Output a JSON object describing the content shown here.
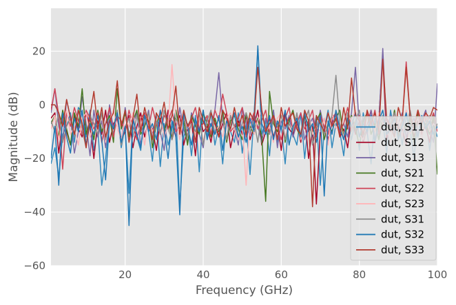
{
  "chart_data": {
    "type": "line",
    "title": "",
    "xlabel": "Frequency (GHz)",
    "ylabel": "Magnitude (dB)",
    "xlim": [
      1,
      100
    ],
    "ylim": [
      -60,
      36
    ],
    "xticks": [
      20,
      40,
      60,
      80,
      100
    ],
    "yticks": [
      -60,
      -40,
      -20,
      0,
      20
    ],
    "xtick_labels": [
      "20",
      "40",
      "60",
      "80",
      "100"
    ],
    "ytick_labels": [
      "−60",
      "−40",
      "−20",
      "0",
      "20"
    ],
    "grid": true,
    "legend_position": "lower-right",
    "x": [
      1,
      2,
      3,
      4,
      5,
      6,
      7,
      8,
      9,
      10,
      11,
      12,
      13,
      14,
      15,
      16,
      17,
      18,
      19,
      20,
      21,
      22,
      23,
      24,
      25,
      26,
      27,
      28,
      29,
      30,
      31,
      32,
      33,
      34,
      35,
      36,
      37,
      38,
      39,
      40,
      41,
      42,
      43,
      44,
      45,
      46,
      47,
      48,
      49,
      50,
      51,
      52,
      53,
      54,
      55,
      56,
      57,
      58,
      59,
      60,
      61,
      62,
      63,
      64,
      65,
      66,
      67,
      68,
      69,
      70,
      71,
      72,
      73,
      74,
      75,
      76,
      77,
      78,
      79,
      80,
      81,
      82,
      83,
      84,
      85,
      86,
      87,
      88,
      89,
      90,
      91,
      92,
      93,
      94,
      95,
      96,
      97,
      98,
      99,
      100
    ],
    "series": [
      {
        "name": "dut, S11",
        "color": "#348ABD",
        "values": [
          -22,
          -16,
          -27,
          -11,
          -8,
          -3,
          -14,
          -1,
          -3,
          -12,
          -2,
          -17,
          -9,
          -30,
          -20,
          -5,
          -11,
          -3,
          -16,
          -8,
          -33,
          -5,
          -12,
          -17,
          -3,
          -10,
          -21,
          -4,
          -23,
          -7,
          -15,
          -9,
          -2,
          -38,
          -12,
          -7,
          -19,
          -4,
          -25,
          -2,
          -12,
          -3,
          -15,
          -8,
          -22,
          -5,
          -10,
          -14,
          -3,
          -18,
          -7,
          -26,
          -4,
          21,
          -11,
          -6,
          -19,
          -2,
          -14,
          -8,
          -22,
          -5,
          -11,
          -15,
          -3,
          -20,
          -6,
          -12,
          -4,
          -30,
          -9,
          -2,
          -16,
          -7,
          -10,
          -19,
          -4,
          -13,
          -6,
          -17,
          -3,
          -10,
          -22,
          -5,
          -13,
          -6,
          -18,
          -2,
          -11,
          -7,
          -15,
          -4,
          -9,
          -20,
          -5,
          -13,
          -3,
          -17,
          -7,
          -12
        ]
      },
      {
        "name": "dut, S12",
        "color": "#A60628",
        "values": [
          -5,
          -3,
          -18,
          -6,
          -10,
          -15,
          -4,
          -9,
          -12,
          -3,
          -8,
          -20,
          -6,
          -11,
          -2,
          -14,
          -7,
          -5,
          -13,
          -10,
          -4,
          -16,
          -8,
          -3,
          -12,
          -6,
          -9,
          -17,
          -5,
          -11,
          -2,
          -13,
          -7,
          -4,
          -15,
          -9,
          -6,
          -19,
          -3,
          -10,
          -8,
          -14,
          -5,
          -12,
          -7,
          -3,
          -16,
          -9,
          -6,
          -11,
          -4,
          -13,
          -8,
          -2,
          -15,
          -10,
          -5,
          -12,
          -7,
          -17,
          -3,
          -9,
          -11,
          -6,
          -14,
          -4,
          -20,
          -8,
          -37,
          -10,
          -5,
          -13,
          -7,
          -3,
          -12,
          -9,
          -16,
          -4,
          -11,
          -6,
          -14,
          -8,
          -2,
          -10,
          -5,
          18,
          -13,
          -7,
          -3,
          -11,
          -9,
          -15,
          -4,
          -12,
          -6,
          -10,
          -8,
          -14,
          -5,
          -9
        ]
      },
      {
        "name": "dut, S13",
        "color": "#7A68A6",
        "values": [
          -3,
          6,
          -8,
          -14,
          2,
          -5,
          -18,
          -10,
          3,
          -7,
          -19,
          -2,
          -12,
          -6,
          -16,
          0,
          -9,
          -4,
          -14,
          -1,
          -11,
          -7,
          -3,
          -15,
          -8,
          -2,
          -13,
          -5,
          -10,
          -17,
          -4,
          -6,
          -12,
          -1,
          -9,
          -14,
          -3,
          -7,
          -11,
          -16,
          -5,
          -8,
          -2,
          12,
          -6,
          -13,
          -4,
          -9,
          -15,
          -1,
          -7,
          -11,
          -3,
          -8,
          -14,
          -5,
          -10,
          -2,
          -16,
          -6,
          -9,
          -4,
          -12,
          -7,
          -3,
          -13,
          -8,
          -5,
          -11,
          -2,
          -9,
          -14,
          -6,
          -4,
          -10,
          -7,
          -12,
          -3,
          14,
          -8,
          -5,
          -11,
          -2,
          -13,
          -6,
          21,
          -9,
          -4,
          -10,
          -7,
          -3,
          -12,
          -8,
          -5,
          -11,
          -6,
          -2,
          -9,
          -14,
          8
        ]
      },
      {
        "name": "dut, S21",
        "color": "#467821",
        "values": [
          -7,
          -4,
          -12,
          -2,
          -9,
          -15,
          -3,
          -8,
          6,
          -11,
          -5,
          -13,
          -2,
          -10,
          -7,
          -4,
          -14,
          6,
          -9,
          -3,
          -12,
          -6,
          -2,
          -11,
          -8,
          -4,
          -16,
          -7,
          -3,
          -10,
          -5,
          -13,
          -2,
          -9,
          -6,
          -15,
          -4,
          -8,
          -11,
          -3,
          -7,
          -12,
          -5,
          -10,
          -2,
          -14,
          -6,
          -4,
          -9,
          -13,
          -3,
          -8,
          -11,
          -5,
          -12,
          -36,
          5,
          -7,
          -10,
          -3,
          -14,
          -6,
          -2,
          -9,
          -12,
          -4,
          -8,
          -11,
          -6,
          -3,
          -13,
          -7,
          -10,
          -5,
          -2,
          -12,
          -8,
          -4,
          -9,
          -15,
          -6,
          -3,
          -11,
          -7,
          -13,
          -4,
          -8,
          -10,
          -2,
          -12,
          -6,
          -9,
          -5,
          -14,
          -3,
          -10,
          -7,
          -11,
          -4,
          -26
        ]
      },
      {
        "name": "dut, S22",
        "color": "#CF4457",
        "values": [
          -2,
          6,
          -4,
          -24,
          -3,
          -8,
          -1,
          -6,
          -11,
          -2,
          -5,
          -9,
          -3,
          -14,
          -7,
          -1,
          -12,
          -4,
          -6,
          -10,
          -2,
          -8,
          -13,
          -5,
          -3,
          -9,
          -1,
          -7,
          -11,
          -4,
          -6,
          -2,
          -10,
          -8,
          -3,
          -12,
          -5,
          -1,
          -9,
          -7,
          -4,
          -11,
          -2,
          -6,
          4,
          -3,
          -10,
          -8,
          -5,
          -1,
          -12,
          -7,
          -3,
          -9,
          -6,
          -2,
          -11,
          -4,
          -8,
          -13,
          -5,
          -1,
          -10,
          -7,
          -3,
          -9,
          -6,
          -2,
          -12,
          -4,
          -8,
          -11,
          -5,
          -3,
          -10,
          -7,
          -1,
          -9,
          -6,
          -4,
          -12,
          -3,
          -8,
          -2,
          -11,
          -7,
          -5,
          -10,
          -3,
          -9,
          -6,
          16,
          -4,
          -8,
          -2,
          -11,
          -5,
          -7,
          -3,
          -10
        ]
      },
      {
        "name": "dut, S23",
        "color": "#FFB5B8",
        "values": [
          -9,
          -4,
          -13,
          -6,
          -2,
          -11,
          -8,
          -15,
          -5,
          -3,
          -12,
          -7,
          -10,
          -4,
          -14,
          -6,
          -2,
          -9,
          -13,
          -5,
          -8,
          -3,
          -11,
          -7,
          -15,
          -4,
          -10,
          -6,
          -2,
          -12,
          -8,
          15,
          -5,
          -13,
          -3,
          -9,
          -7,
          -11,
          -4,
          -14,
          -6,
          -2,
          -10,
          -8,
          -12,
          -5,
          -3,
          -9,
          -13,
          -7,
          -30,
          -4,
          -11,
          -6,
          -2,
          -10,
          -8,
          -14,
          -5,
          -3,
          -12,
          -7,
          -9,
          -4,
          -13,
          -6,
          -2,
          -11,
          -8,
          -10,
          -5,
          -15,
          -3,
          -9,
          -7,
          -12,
          -4,
          -6,
          -2,
          -11,
          -13,
          -8,
          -5,
          -10,
          -3,
          -7,
          -9,
          -14,
          -4,
          -6,
          -12,
          -2,
          -11,
          -8,
          -5,
          -13,
          -3,
          -10,
          -7,
          -9
        ]
      },
      {
        "name": "dut, S31",
        "color": "#8C8C8C",
        "values": [
          -6,
          -10,
          -3,
          -14,
          -8,
          -5,
          -12,
          -2,
          -9,
          -16,
          -4,
          -7,
          -11,
          -3,
          -13,
          -6,
          -9,
          -2,
          -15,
          -8,
          -5,
          -12,
          -4,
          -10,
          -7,
          -3,
          -14,
          -6,
          -11,
          -2,
          -9,
          -13,
          -5,
          -8,
          -4,
          -12,
          -7,
          -10,
          -3,
          -15,
          -6,
          -2,
          -11,
          -9,
          -5,
          -13,
          -4,
          -8,
          -12,
          -7,
          -3,
          -10,
          -6,
          -14,
          -2,
          -9,
          -11,
          -5,
          -8,
          -4,
          -13,
          -7,
          -10,
          -3,
          -12,
          -6,
          -2,
          -15,
          -9,
          -5,
          -11,
          -8,
          -4,
          11,
          -7,
          -13,
          -3,
          -10,
          -6,
          -2,
          -12,
          -9,
          -5,
          -14,
          -8,
          -4,
          -11,
          -7,
          -3,
          -13,
          -6,
          -10,
          -2,
          -9,
          -12,
          -5,
          -8,
          -4,
          -11,
          -7
        ]
      },
      {
        "name": "dut, S32",
        "color": "#1F77B4",
        "values": [
          -20,
          -8,
          -30,
          -3,
          -12,
          -18,
          -5,
          -10,
          -2,
          -15,
          -7,
          -11,
          -4,
          -13,
          -28,
          -6,
          -9,
          -3,
          -14,
          -8,
          -45,
          -5,
          -11,
          -16,
          -4,
          -10,
          -7,
          -13,
          -2,
          -9,
          -20,
          -6,
          -12,
          -41,
          -3,
          -8,
          -15,
          -5,
          -10,
          -2,
          -13,
          -7,
          -11,
          -4,
          -17,
          -6,
          -9,
          -3,
          -12,
          -8,
          -14,
          -5,
          -10,
          22,
          -7,
          -11,
          -4,
          -13,
          -6,
          -9,
          -2,
          -15,
          -8,
          -5,
          -12,
          -3,
          -10,
          -7,
          -14,
          -4,
          -34,
          -6,
          -11,
          -2,
          -9,
          -13,
          -5,
          -8,
          -3,
          -12,
          -7,
          -10,
          -4,
          -14,
          -6,
          -2,
          -11,
          -9,
          -5,
          -13,
          -8,
          -3,
          -10,
          -7,
          -12,
          -4,
          -9,
          -6,
          -11,
          -8
        ]
      },
      {
        "name": "dut, S33",
        "color": "#B23A2E",
        "values": [
          0,
          0,
          -3,
          -8,
          2,
          -5,
          -11,
          -2,
          -7,
          -16,
          -4,
          5,
          -9,
          -1,
          -12,
          -6,
          -3,
          9,
          -8,
          -2,
          -14,
          -5,
          4,
          -10,
          -1,
          -7,
          -13,
          -3,
          -6,
          1,
          -9,
          -4,
          7,
          -11,
          -2,
          -8,
          -5,
          -14,
          -1,
          -6,
          -10,
          -3,
          -7,
          -12,
          -2,
          -5,
          -9,
          -1,
          -8,
          -4,
          -11,
          -3,
          -6,
          14,
          -2,
          -10,
          -7,
          -4,
          -13,
          -1,
          -8,
          -5,
          -3,
          -9,
          -11,
          -2,
          -6,
          -38,
          -4,
          -7,
          -10,
          -3,
          -8,
          -5,
          -12,
          -1,
          -9,
          10,
          -4,
          -6,
          -11,
          -2,
          -7,
          -3,
          -10,
          17,
          -5,
          -8,
          -12,
          -1,
          -6,
          14,
          -4,
          -9,
          -2,
          -7,
          -3,
          -5,
          -1,
          -2
        ]
      }
    ]
  }
}
